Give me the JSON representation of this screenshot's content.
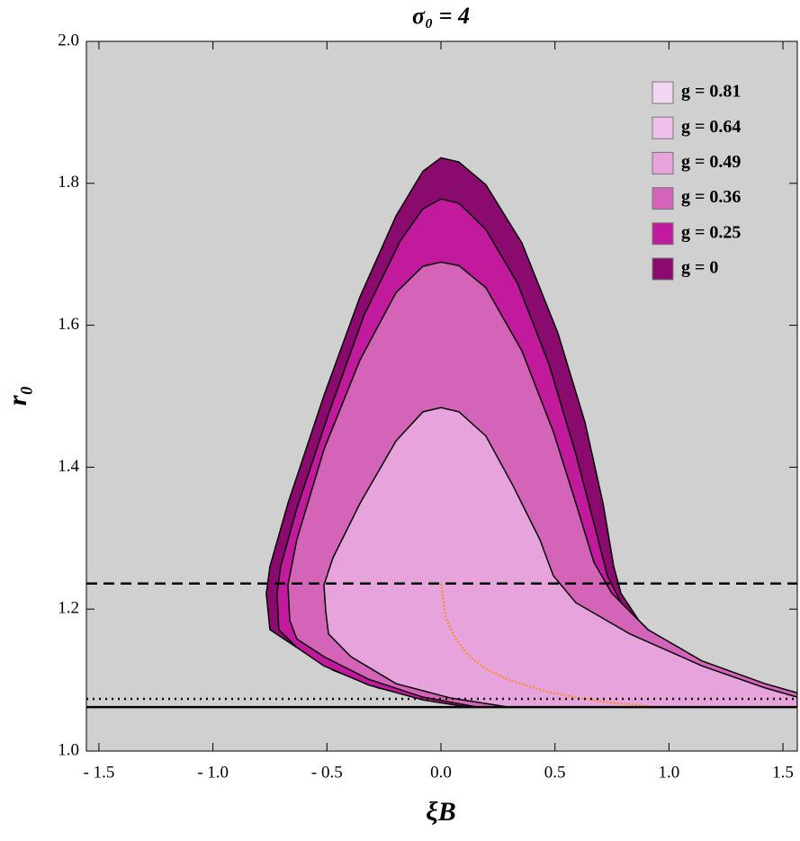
{
  "chart_data": {
    "type": "region",
    "title": "σ₀ = 4",
    "xlabel": "ξB",
    "ylabel": "r₀",
    "background": "#d0d0d0",
    "xlim": [
      -1.555,
      1.563
    ],
    "ylim": [
      1.0,
      2.0
    ],
    "xticks": [
      {
        "value": -1.5,
        "label": "- 1.5"
      },
      {
        "value": -1.0,
        "label": "- 1.0"
      },
      {
        "value": -0.5,
        "label": "- 0.5"
      },
      {
        "value": 0.0,
        "label": "0.0"
      },
      {
        "value": 0.5,
        "label": "0.5"
      },
      {
        "value": 1.0,
        "label": "1.0"
      },
      {
        "value": 1.5,
        "label": "1.5"
      }
    ],
    "yticks": [
      {
        "value": 1.0,
        "label": "1.0"
      },
      {
        "value": 1.2,
        "label": "1.2"
      },
      {
        "value": 1.4,
        "label": "1.4"
      },
      {
        "value": 1.6,
        "label": "1.6"
      },
      {
        "value": 1.8,
        "label": "1.8"
      },
      {
        "value": 2.0,
        "label": "2.0"
      }
    ],
    "legend": "upper right",
    "series": [
      {
        "name": "g = 0.81",
        "color": "#f2d5f0"
      },
      {
        "name": "g = 0.64",
        "color": "#efc0ec"
      },
      {
        "name": "g = 0.49",
        "color": "#e6a3dc",
        "x": [
          -0.505,
          -0.513,
          -0.474,
          -0.355,
          -0.197,
          -0.079,
          0,
          0.079,
          0.197,
          0.316,
          0.434,
          0.493,
          0.592,
          0.829,
          1.145,
          1.421,
          1.563,
          1.563,
          0.296,
          0.039,
          -0.197,
          -0.395,
          -0.493
        ],
        "y": [
          1.196,
          1.234,
          1.272,
          1.349,
          1.437,
          1.478,
          1.484,
          1.478,
          1.444,
          1.374,
          1.298,
          1.247,
          1.209,
          1.165,
          1.12,
          1.089,
          1.076,
          1.062,
          1.062,
          1.075,
          1.095,
          1.133,
          1.165
        ]
      },
      {
        "name": "g = 0.36",
        "color": "#d464b8",
        "x": [
          -0.663,
          -0.671,
          -0.632,
          -0.513,
          -0.355,
          -0.197,
          -0.079,
          0,
          0.079,
          0.197,
          0.355,
          0.493,
          0.592,
          0.671,
          0.75,
          0.908,
          1.145,
          1.421,
          1.563,
          1.563,
          0.158,
          -0.079,
          -0.316,
          -0.513,
          -0.632
        ],
        "y": [
          1.184,
          1.234,
          1.298,
          1.425,
          1.551,
          1.646,
          1.683,
          1.689,
          1.684,
          1.653,
          1.564,
          1.45,
          1.349,
          1.266,
          1.222,
          1.171,
          1.127,
          1.095,
          1.082,
          1.062,
          1.062,
          1.076,
          1.101,
          1.133,
          1.158
        ]
      },
      {
        "name": "g = 0.25",
        "color": "#c21a9c",
        "x": [
          -0.711,
          -0.719,
          -0.703,
          -0.632,
          -0.493,
          -0.336,
          -0.178,
          -0.079,
          0,
          0.079,
          0.197,
          0.336,
          0.474,
          0.592,
          0.679,
          0.73,
          0.79,
          0.908,
          1.066,
          1.263,
          1.563,
          1.563,
          0.118,
          -0.079,
          -0.316,
          -0.513,
          -0.632
        ],
        "y": [
          1.171,
          1.222,
          1.26,
          1.342,
          1.475,
          1.615,
          1.719,
          1.764,
          1.778,
          1.772,
          1.735,
          1.659,
          1.545,
          1.418,
          1.311,
          1.247,
          1.209,
          1.165,
          1.127,
          1.101,
          1.08,
          1.062,
          1.062,
          1.072,
          1.093,
          1.12,
          1.146
        ]
      },
      {
        "name": "g = 0",
        "color": "#8b0a6e",
        "x": [
          -0.75,
          -0.766,
          -0.75,
          -0.671,
          -0.513,
          -0.355,
          -0.197,
          -0.079,
          0,
          0.079,
          0.197,
          0.355,
          0.513,
          0.632,
          0.711,
          0.758,
          0.79,
          0.868,
          0.987,
          1.145,
          1.342,
          1.563,
          1.563,
          0.158,
          -0.039,
          -0.276,
          -0.474,
          -0.632
        ],
        "y": [
          1.171,
          1.222,
          1.26,
          1.349,
          1.501,
          1.64,
          1.754,
          1.817,
          1.836,
          1.83,
          1.798,
          1.716,
          1.589,
          1.463,
          1.349,
          1.26,
          1.222,
          1.184,
          1.146,
          1.114,
          1.093,
          1.076,
          1.062,
          1.062,
          1.072,
          1.089,
          1.114,
          1.146
        ]
      }
    ],
    "curve": {
      "color": "#ff8c1a",
      "x": [
        0,
        0.02,
        0.06,
        0.12,
        0.2,
        0.3,
        0.45,
        0.6,
        0.75,
        0.93
      ],
      "y": [
        1.236,
        1.19,
        1.16,
        1.135,
        1.115,
        1.1,
        1.085,
        1.075,
        1.068,
        1.063
      ]
    },
    "hlines": [
      {
        "y": 1.236,
        "style": "dashed"
      },
      {
        "y": 1.0735,
        "style": "dotted"
      },
      {
        "y": 1.062,
        "style": "solid"
      }
    ]
  }
}
